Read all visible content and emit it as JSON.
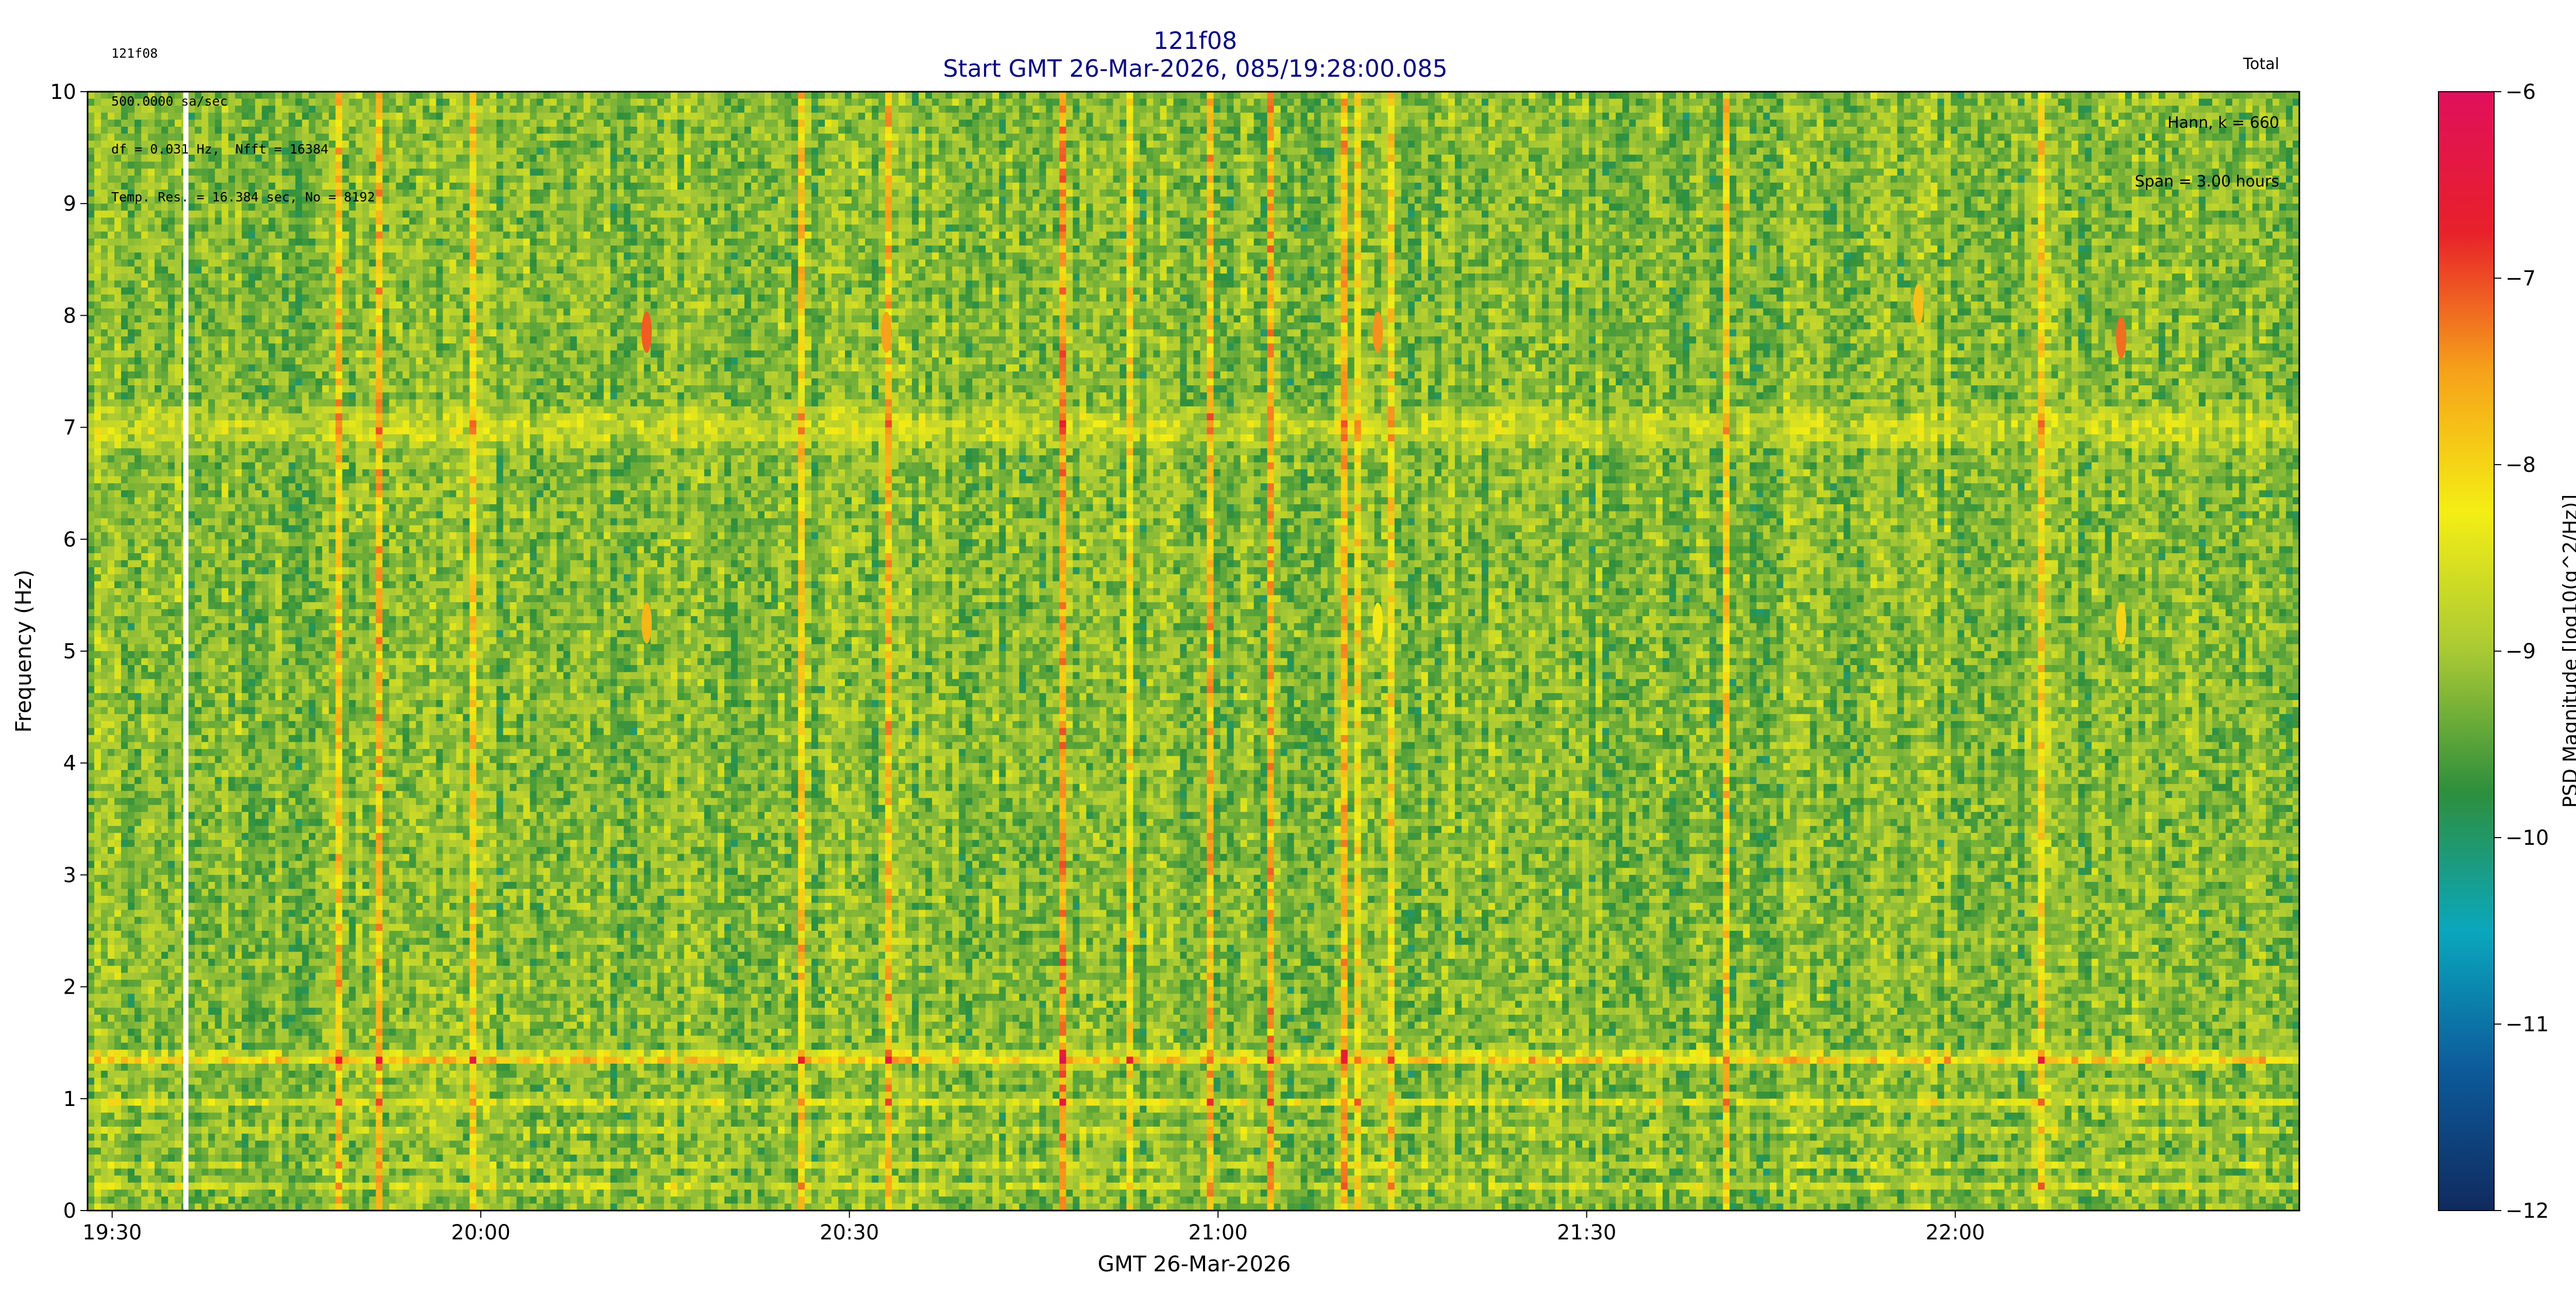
{
  "header": {
    "left_lines": [
      "121f08",
      "500.0000 sa/sec",
      "df = 0.031 Hz,  Nfft = 16384",
      "Temp. Res. = 16.384 sec, No = 8192"
    ],
    "right_lines": [
      "Total",
      "Hann, k = 660",
      "Span = 3.00 hours"
    ],
    "title": "121f08",
    "subtitle": "Start GMT 26-Mar-2026, 085/19:28:00.085"
  },
  "chart_data": {
    "type": "heatmap",
    "title": "121f08",
    "subtitle": "Start GMT 26-Mar-2026, 085/19:28:00.085",
    "xlabel": "GMT 26-Mar-2026",
    "ylabel": "Frequency (Hz)",
    "colorbar_label": "PSD Magnitude [log10(g^2/Hz)]",
    "x_start": "19:28:00",
    "x_end": "22:28:00",
    "x_ticks": [
      "19:30",
      "20:00",
      "20:30",
      "21:00",
      "21:30",
      "22:00"
    ],
    "ylim": [
      0,
      10
    ],
    "y_ticks": [
      "0",
      "1",
      "2",
      "3",
      "4",
      "5",
      "6",
      "7",
      "8",
      "9",
      "10"
    ],
    "clim": [
      -12,
      -6
    ],
    "colorbar_ticks": [
      "−6",
      "−7",
      "−8",
      "−9",
      "−10",
      "−11",
      "−12"
    ],
    "colormap": [
      "#102a5e",
      "#0c5a9a",
      "#0aa7bd",
      "#2e8f3c",
      "#a9c934",
      "#f4ee14",
      "#f6a21a",
      "#e8202a",
      "#e0105c"
    ],
    "gap_line": {
      "time": "19:36:00",
      "color": "#ffffff"
    },
    "horizontal_bands": [
      {
        "freq": 1.36,
        "level": -7.9
      },
      {
        "freq": 0.95,
        "level": -8.4
      },
      {
        "freq": 0.7,
        "level": -8.7
      },
      {
        "freq": 0.4,
        "level": -8.8
      },
      {
        "freq": 0.22,
        "level": -8.7
      },
      {
        "freq": 3.65,
        "level": -9.4
      }
    ],
    "transients": [
      {
        "time": "20:13:30",
        "freq": 7.85,
        "level": -7.1
      },
      {
        "time": "20:33:00",
        "freq": 7.85,
        "level": -7.5
      },
      {
        "time": "21:13:00",
        "freq": 7.85,
        "level": -7.4
      },
      {
        "time": "21:57:00",
        "freq": 8.1,
        "level": -7.8
      },
      {
        "time": "22:13:30",
        "freq": 7.8,
        "level": -7.2
      },
      {
        "time": "20:13:30",
        "freq": 5.25,
        "level": -7.7
      },
      {
        "time": "21:13:00",
        "freq": 5.25,
        "level": -8.2
      },
      {
        "time": "22:13:30",
        "freq": 5.25,
        "level": -8.0
      }
    ]
  }
}
